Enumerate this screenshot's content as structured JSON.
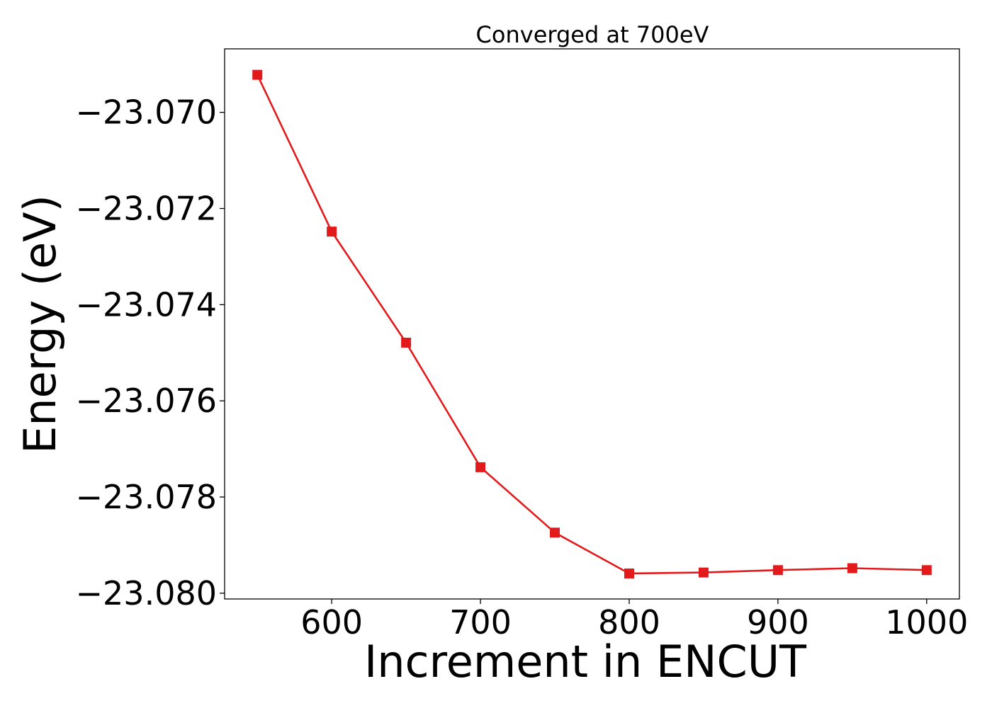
{
  "chart_data": {
    "type": "line",
    "title": "Converged at 700eV",
    "xlabel": "Increment in ENCUT",
    "ylabel": "Energy (eV)",
    "xlim": [
      528,
      1022
    ],
    "ylim": [
      -23.08012,
      -23.06868
    ],
    "xticks": [
      600,
      700,
      800,
      900,
      1000
    ],
    "xtick_labels": [
      "600",
      "700",
      "800",
      "900",
      "1000"
    ],
    "yticks": [
      -23.07,
      -23.072,
      -23.074,
      -23.076,
      -23.078,
      -23.08
    ],
    "ytick_labels": [
      "−23.070",
      "−23.072",
      "−23.074",
      "−23.076",
      "−23.078",
      "−23.080"
    ],
    "grid": false,
    "legend": "none",
    "series": [
      {
        "color": "#e31a1c",
        "marker": "square",
        "x": [
          550,
          600,
          650,
          700,
          750,
          800,
          850,
          900,
          950,
          1000
        ],
        "y": [
          -23.06922,
          -23.07248,
          -23.07479,
          -23.07738,
          -23.07874,
          -23.07959,
          -23.07957,
          -23.07952,
          -23.07948,
          -23.07952
        ]
      }
    ]
  }
}
